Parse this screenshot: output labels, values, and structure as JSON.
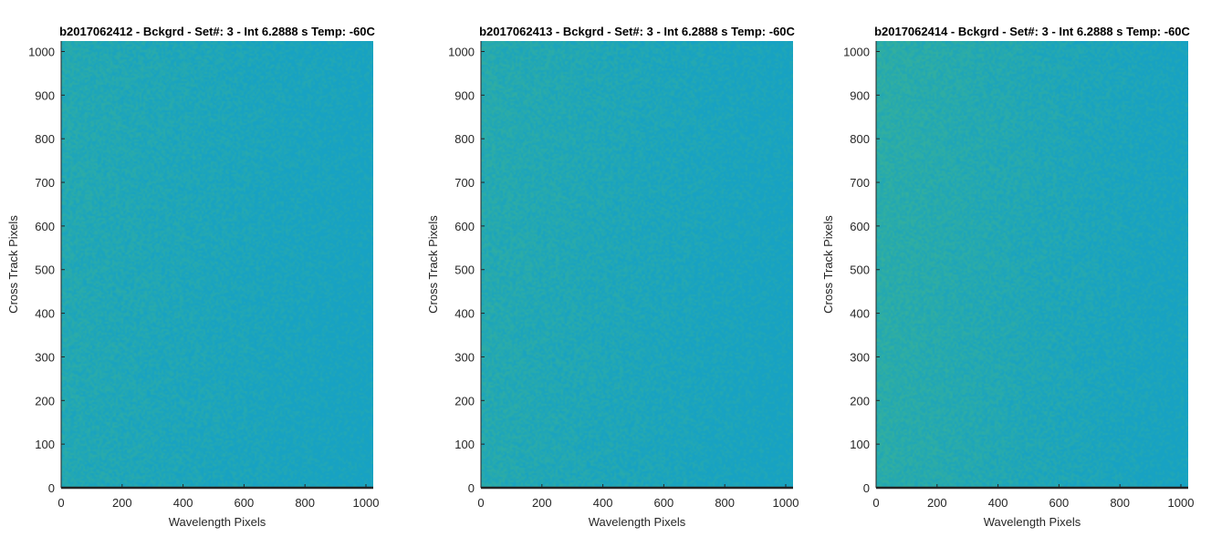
{
  "chart_data": [
    {
      "type": "heatmap",
      "title": "b2017062412 - Bckgrd - Set#: 3 - Int 6.2888 s Temp: -60C",
      "xlabel": "Wavelength Pixels",
      "ylabel": "Cross Track Pixels",
      "xlim": [
        0,
        1024
      ],
      "ylim": [
        0,
        1024
      ],
      "xticks": [
        0,
        200,
        400,
        600,
        800,
        1000
      ],
      "yticks": [
        0,
        100,
        200,
        300,
        400,
        500,
        600,
        700,
        800,
        900,
        1000
      ],
      "colormap": "parula",
      "color_low": "#17a2c4",
      "color_high": "#3fb58e",
      "grid": false
    },
    {
      "type": "heatmap",
      "title": "b2017062413 - Bckgrd - Set#: 3 - Int 6.2888 s Temp: -60C",
      "xlabel": "Wavelength Pixels",
      "ylabel": "Cross Track Pixels",
      "xlim": [
        0,
        1024
      ],
      "ylim": [
        0,
        1024
      ],
      "xticks": [
        0,
        200,
        400,
        600,
        800,
        1000
      ],
      "yticks": [
        0,
        100,
        200,
        300,
        400,
        500,
        600,
        700,
        800,
        900,
        1000
      ],
      "colormap": "parula",
      "color_low": "#17a2c4",
      "color_high": "#3fb58e",
      "grid": false
    },
    {
      "type": "heatmap",
      "title": "b2017062414 - Bckgrd - Set#: 3 - Int 6.2888 s Temp: -60C",
      "xlabel": "Wavelength Pixels",
      "ylabel": "Cross Track Pixels",
      "xlim": [
        0,
        1024
      ],
      "ylim": [
        0,
        1024
      ],
      "xticks": [
        0,
        200,
        400,
        600,
        800,
        1000
      ],
      "yticks": [
        0,
        100,
        200,
        300,
        400,
        500,
        600,
        700,
        800,
        900,
        1000
      ],
      "colormap": "parula",
      "color_low": "#17a2c4",
      "color_high": "#3fb58e",
      "grid": false
    }
  ]
}
